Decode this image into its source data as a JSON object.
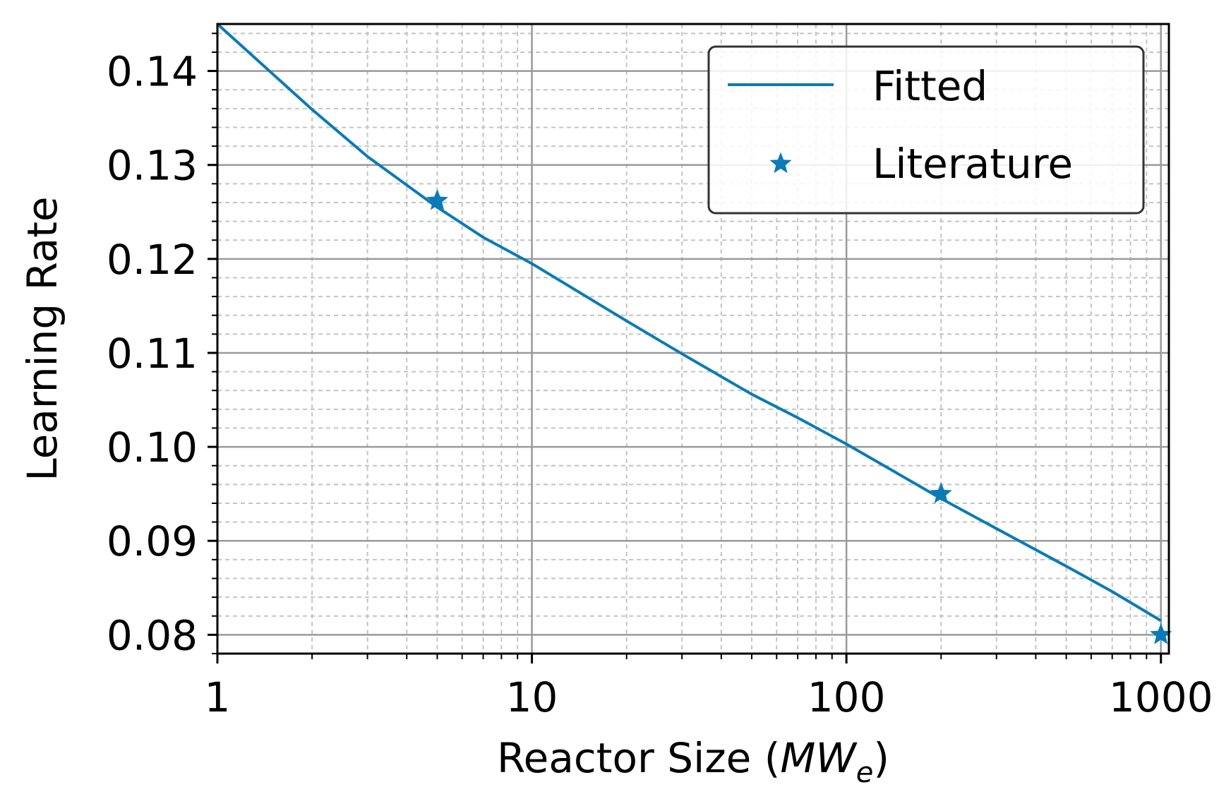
{
  "chart_data": {
    "type": "line",
    "xscale": "log",
    "xlim": [
      1,
      1000
    ],
    "ylim": [
      0.078,
      0.145
    ],
    "xlabel": {
      "prefix": "Reactor Size (",
      "main": "MW",
      "subscript": "e",
      "suffix": ")"
    },
    "ylabel": "Learning Rate",
    "x_ticks": [
      1,
      10,
      100,
      1000
    ],
    "x_tick_labels": [
      "1",
      "10",
      "100",
      "1000"
    ],
    "y_ticks": [
      0.08,
      0.09,
      0.1,
      0.11,
      0.12,
      0.13,
      0.14
    ],
    "y_tick_labels": [
      "0.08",
      "0.09",
      "0.10",
      "0.11",
      "0.12",
      "0.13",
      "0.14"
    ],
    "grid": true,
    "legend_position": "top-right",
    "colors": {
      "series": "#0a7bb7",
      "grid_major": "#9a9a9a",
      "grid_minor": "#c4c4c4"
    },
    "series": [
      {
        "name": "Fitted",
        "kind": "line",
        "x": [
          1,
          2,
          3,
          5,
          7,
          10,
          20,
          30,
          50,
          70,
          100,
          200,
          300,
          500,
          700,
          1000
        ],
        "y": [
          0.145,
          0.1359,
          0.1309,
          0.1255,
          0.1223,
          0.1195,
          0.1134,
          0.1099,
          0.1056,
          0.1031,
          0.1003,
          0.0945,
          0.0913,
          0.0873,
          0.0846,
          0.0815
        ]
      },
      {
        "name": "Literature",
        "kind": "scatter",
        "marker": "star",
        "x": [
          5,
          200,
          1000
        ],
        "y": [
          0.1262,
          0.095,
          0.08
        ]
      }
    ]
  }
}
